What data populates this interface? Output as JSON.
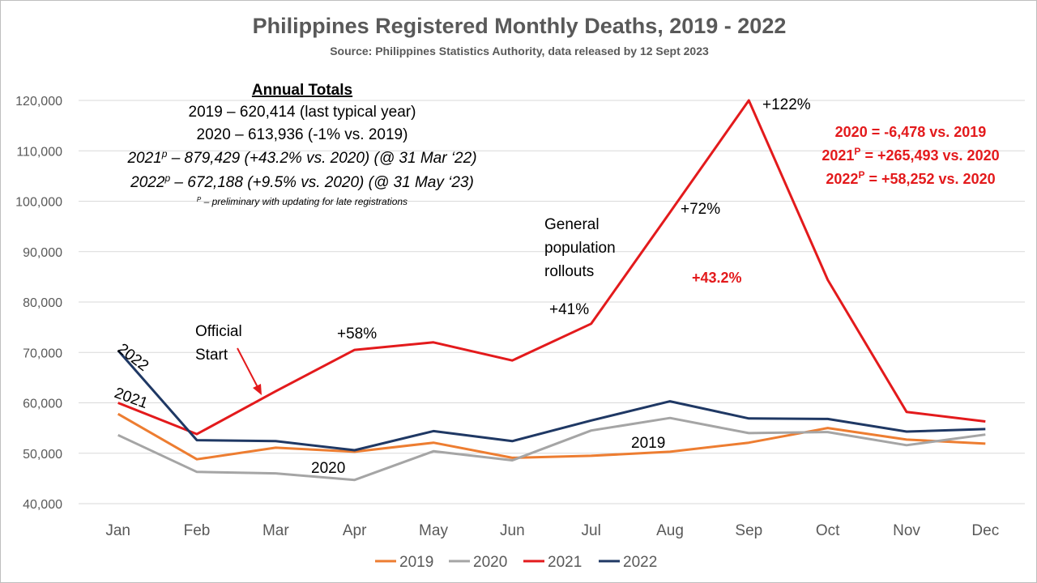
{
  "chart_data": {
    "type": "line",
    "title": "Philippines Registered Monthly Deaths, 2019 - 2022",
    "subtitle": "Source: Philippines Statistics Authority, data released by 12 Sept 2023",
    "categories": [
      "Jan",
      "Feb",
      "Mar",
      "Apr",
      "May",
      "Jun",
      "Jul",
      "Aug",
      "Sep",
      "Oct",
      "Nov",
      "Dec"
    ],
    "ylim": [
      40000,
      120000
    ],
    "yticks": [
      "40,000",
      "50,000",
      "60,000",
      "70,000",
      "80,000",
      "90,000",
      "100,000",
      "110,000",
      "120,000"
    ],
    "grid": true,
    "legend_position": "bottom",
    "series": [
      {
        "name": "2019",
        "color": "#ed7d31",
        "values": [
          57800,
          48800,
          51100,
          50300,
          52100,
          49100,
          49500,
          50300,
          52100,
          55000,
          52700,
          51900
        ]
      },
      {
        "name": "2020",
        "color": "#a5a5a5",
        "values": [
          53600,
          46300,
          46000,
          44700,
          50400,
          48600,
          54500,
          57000,
          54000,
          54200,
          51600,
          53700
        ]
      },
      {
        "name": "2021",
        "color": "#e31a1c",
        "values": [
          60000,
          53800,
          62300,
          70500,
          72000,
          68400,
          75700,
          97800,
          120000,
          84400,
          58200,
          56300
        ]
      },
      {
        "name": "2022",
        "color": "#1f3864",
        "values": [
          70400,
          52600,
          52400,
          50600,
          54400,
          52400,
          56500,
          60300,
          56900,
          56800,
          54300,
          54800
        ]
      }
    ]
  },
  "annotations": {
    "totals_heading": "Annual Totals",
    "totals_2019": "2019 – 620,414 (last typical year)",
    "totals_2020": "2020 – 613,936 (-1% vs. 2019)",
    "totals_2021_year": "2021",
    "totals_2021_sup": "p",
    "totals_2021_rest": " – 879,429 (+43.2% vs. 2020) (@ 31 Mar ‘22)",
    "totals_2022_year": "2022",
    "totals_2022_sup": "p",
    "totals_2022_rest": " – 672,188 (+9.5% vs. 2020) (@ 31 May ‘23)",
    "footnote_sup": "P",
    "footnote_rest": " – preliminary with updating for late registrations",
    "label_2022": "2022",
    "label_2021": "2021",
    "label_2020": "2020",
    "label_2019": "2019",
    "official_line1": "Official",
    "official_line2": "Start",
    "pct_58": "+58%",
    "pct_41": "+41%",
    "pct_72": "+72%",
    "pct_122": "+122%",
    "general_line1": "General",
    "general_line2": "population",
    "general_line3": "rollouts",
    "red_43": "+43.2%",
    "diff_2020": "2020 = -6,478 vs. 2019",
    "diff_2021_year": "2021",
    "diff_2021_sup": "P",
    "diff_2021_rest": " = +265,493 vs. 2020",
    "diff_2022_year": "2022",
    "diff_2022_sup": "P",
    "diff_2022_rest": " = +58,252 vs. 2020",
    "arrow_color": "#e31a1c"
  }
}
